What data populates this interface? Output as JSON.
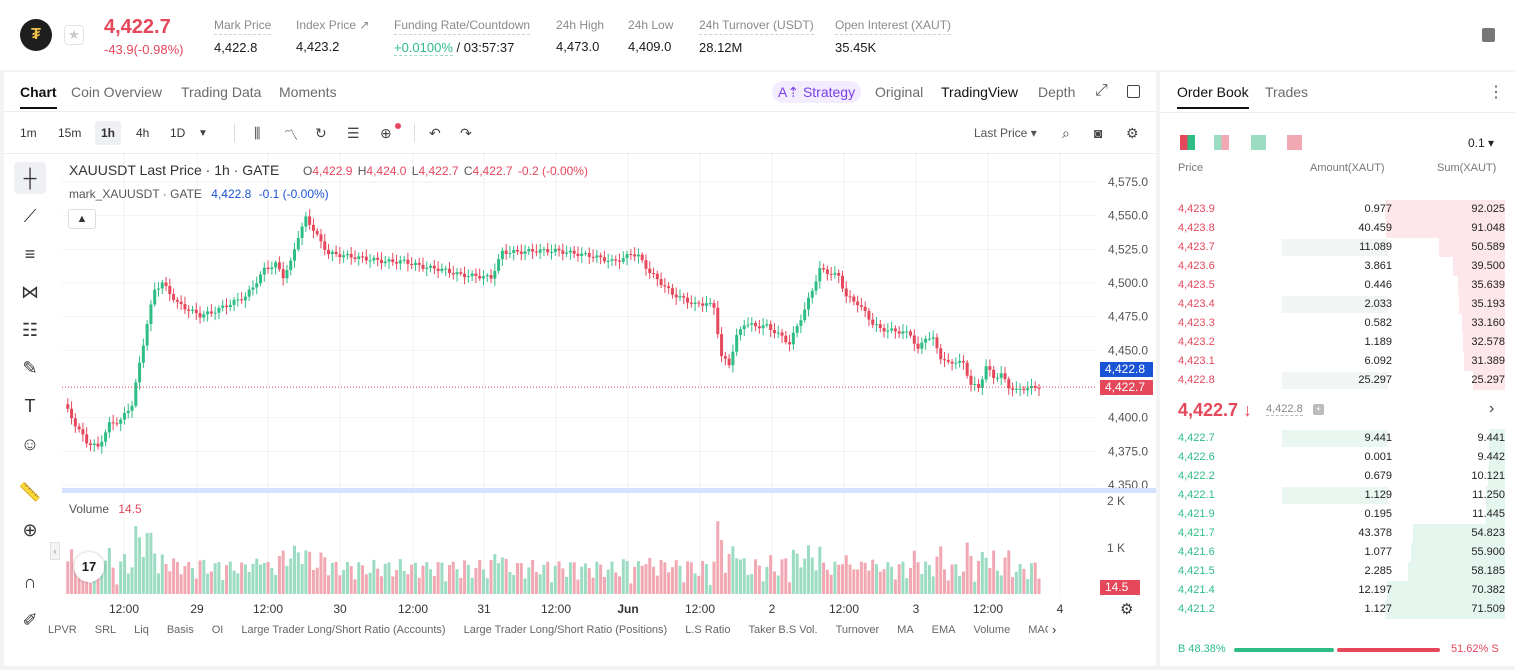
{
  "header": {
    "price": "4,422.7",
    "change": "-43.9(-0.98%)",
    "stats": [
      {
        "label": "Mark Price",
        "value": "4,422.8"
      },
      {
        "label": "Index Price ↗",
        "value": "4,423.2"
      },
      {
        "label": "Funding Rate/Countdown",
        "value_green": "+0.0100%",
        "value": " / 03:57:37"
      },
      {
        "label": "24h High",
        "value": "4,473.0"
      },
      {
        "label": "24h Low",
        "value": "4,409.0"
      },
      {
        "label": "24h Turnover (USDT)",
        "value": "28.12M"
      },
      {
        "label": "Open Interest (XAUT)",
        "value": "35.45K"
      }
    ]
  },
  "chart_panel": {
    "tabs": [
      "Chart",
      "Coin Overview",
      "Trading Data",
      "Moments"
    ],
    "strategy": "A⇡ Strategy",
    "views": [
      "Original",
      "TradingView",
      "Depth"
    ],
    "timeframes": [
      "1m",
      "15m",
      "1h",
      "4h",
      "1D"
    ],
    "last_price_select": "Last Price ▾",
    "legend_title": "XAUUSDT Last Price · 1h · GATE",
    "ohlc": {
      "o_label": "O",
      "o": "4,422.9",
      "h_label": "H",
      "h": "4,424.0",
      "l_label": "L",
      "l": "4,422.7",
      "c_label": "C",
      "c": "4,422.7",
      "chg": "-0.2 (-0.00%)"
    },
    "mark_legend": "mark_XAUUSDT · GATE",
    "mark_value": "4,422.8",
    "mark_chg": "-0.1 (-0.00%)",
    "volume_label": "Volume",
    "volume_value": "14.5",
    "mark_tag": "4,422.8",
    "last_tag": "4,422.7",
    "vol_tag": "14.5",
    "vol_axis": [
      "2 K",
      "1 K"
    ],
    "tv_logo": "17",
    "indicators": [
      "LPVR",
      "SRL",
      "Liq",
      "Basis",
      "OI",
      "Large Trader Long/Short Ratio (Accounts)",
      "Large Trader Long/Short Ratio (Positions)",
      "L.S Ratio",
      "Taker B.S Vol.",
      "Turnover",
      "MA",
      "EMA",
      "Volume",
      "MACD"
    ]
  },
  "chart_data": {
    "type": "candlestick",
    "y_ticks": [
      4575.0,
      4550.0,
      4525.0,
      4500.0,
      4475.0,
      4450.0,
      4400.0,
      4375.0,
      4350.0
    ],
    "y_tick_labels": [
      "4,575.0",
      "4,550.0",
      "4,525.0",
      "4,500.0",
      "4,475.0",
      "4,450.0",
      "4,400.0",
      "4,375.0",
      "4,350.0"
    ],
    "x_tick_labels": [
      "12:00",
      "29",
      "12:00",
      "30",
      "12:00",
      "31",
      "12:00",
      "Jun",
      "12:00",
      "2",
      "12:00",
      "3",
      "12:00",
      "4"
    ],
    "close_path": [
      [
        0,
        4410
      ],
      [
        3,
        4395
      ],
      [
        6,
        4382
      ],
      [
        9,
        4378
      ],
      [
        12,
        4395
      ],
      [
        15,
        4398
      ],
      [
        18,
        4410
      ],
      [
        20,
        4440
      ],
      [
        22,
        4470
      ],
      [
        24,
        4495
      ],
      [
        26,
        4500
      ],
      [
        30,
        4485
      ],
      [
        33,
        4480
      ],
      [
        36,
        4476
      ],
      [
        39,
        4478
      ],
      [
        42,
        4482
      ],
      [
        45,
        4486
      ],
      [
        48,
        4490
      ],
      [
        50,
        4497
      ],
      [
        53,
        4510
      ],
      [
        56,
        4514
      ],
      [
        58,
        4505
      ],
      [
        60,
        4515
      ],
      [
        62,
        4535
      ],
      [
        64,
        4548
      ],
      [
        66,
        4540
      ],
      [
        68,
        4530
      ],
      [
        70,
        4522
      ],
      [
        75,
        4520
      ],
      [
        80,
        4518
      ],
      [
        85,
        4516
      ],
      [
        90,
        4516
      ],
      [
        95,
        4512
      ],
      [
        100,
        4510
      ],
      [
        105,
        4506
      ],
      [
        110,
        4505
      ],
      [
        113,
        4504
      ],
      [
        116,
        4523
      ],
      [
        120,
        4523
      ],
      [
        125,
        4524
      ],
      [
        130,
        4524
      ],
      [
        135,
        4522
      ],
      [
        140,
        4520
      ],
      [
        145,
        4516
      ],
      [
        148,
        4518
      ],
      [
        150,
        4522
      ],
      [
        152,
        4520
      ],
      [
        155,
        4508
      ],
      [
        158,
        4500
      ],
      [
        161,
        4492
      ],
      [
        164,
        4488
      ],
      [
        167,
        4484
      ],
      [
        170,
        4485
      ],
      [
        172,
        4482
      ],
      [
        174,
        4445
      ],
      [
        176,
        4440
      ],
      [
        178,
        4460
      ],
      [
        180,
        4470
      ],
      [
        183,
        4468
      ],
      [
        186,
        4468
      ],
      [
        188,
        4464
      ],
      [
        190,
        4460
      ],
      [
        192,
        4455
      ],
      [
        194,
        4468
      ],
      [
        196,
        4480
      ],
      [
        198,
        4495
      ],
      [
        200,
        4510
      ],
      [
        202,
        4508
      ],
      [
        205,
        4505
      ],
      [
        207,
        4490
      ],
      [
        210,
        4485
      ],
      [
        212,
        4478
      ],
      [
        214,
        4470
      ],
      [
        216,
        4466
      ],
      [
        218,
        4465
      ],
      [
        221,
        4464
      ],
      [
        224,
        4462
      ],
      [
        226,
        4450
      ],
      [
        228,
        4460
      ],
      [
        230,
        4458
      ],
      [
        232,
        4445
      ],
      [
        234,
        4440
      ],
      [
        236,
        4442
      ],
      [
        238,
        4440
      ],
      [
        240,
        4425
      ],
      [
        242,
        4422
      ],
      [
        244,
        4438
      ],
      [
        246,
        4430
      ],
      [
        248,
        4432
      ],
      [
        250,
        4423
      ],
      [
        252,
        4420
      ],
      [
        254,
        4422
      ],
      [
        256,
        4422
      ],
      [
        258,
        4423
      ]
    ],
    "last_price": 4422.7,
    "mark_price": 4422.8,
    "volume_range": [
      0,
      2000
    ],
    "latest_volume": 14.5
  },
  "order_book": {
    "tabs": [
      "Order Book",
      "Trades"
    ],
    "precision": "0.1 ▾",
    "headers": [
      "Price",
      "Amount(XAUT)",
      "Sum(XAUT)"
    ],
    "asks": [
      {
        "price": "4,423.9",
        "amount": "0.977",
        "sum": "92.025",
        "amount_pct": 0.0,
        "sum_pct": 1.0
      },
      {
        "price": "4,423.8",
        "amount": "40.459",
        "sum": "91.048",
        "amount_pct": 0.0,
        "sum_pct": 0.99
      },
      {
        "price": "4,423.7",
        "amount": "11.089",
        "sum": "50.589",
        "amount_pct": 0.95,
        "sum_pct": 0.55
      },
      {
        "price": "4,423.6",
        "amount": "3.861",
        "sum": "39.500",
        "amount_pct": 0.0,
        "sum_pct": 0.43
      },
      {
        "price": "4,423.5",
        "amount": "0.446",
        "sum": "35.639",
        "amount_pct": 0.0,
        "sum_pct": 0.39
      },
      {
        "price": "4,423.4",
        "amount": "2.033",
        "sum": "35.193",
        "amount_pct": 0.95,
        "sum_pct": 0.38
      },
      {
        "price": "4,423.3",
        "amount": "0.582",
        "sum": "33.160",
        "amount_pct": 0.0,
        "sum_pct": 0.36
      },
      {
        "price": "4,423.2",
        "amount": "1.189",
        "sum": "32.578",
        "amount_pct": 0.0,
        "sum_pct": 0.35
      },
      {
        "price": "4,423.1",
        "amount": "6.092",
        "sum": "31.389",
        "amount_pct": 0.0,
        "sum_pct": 0.34
      },
      {
        "price": "4,422.8",
        "amount": "25.297",
        "sum": "25.297",
        "amount_pct": 0.95,
        "sum_pct": 0.27
      }
    ],
    "mid_price": "4,422.7 ↓",
    "mid_mark": "4,422.8",
    "bids": [
      {
        "price": "4,422.7",
        "amount": "9.441",
        "sum": "9.441",
        "amount_pct": 0.95,
        "sum_pct": 0.13
      },
      {
        "price": "4,422.6",
        "amount": "0.001",
        "sum": "9.442",
        "amount_pct": 0.0,
        "sum_pct": 0.13
      },
      {
        "price": "4,422.2",
        "amount": "0.679",
        "sum": "10.121",
        "amount_pct": 0.0,
        "sum_pct": 0.14
      },
      {
        "price": "4,422.1",
        "amount": "1.129",
        "sum": "11.250",
        "amount_pct": 0.95,
        "sum_pct": 0.16
      },
      {
        "price": "4,421.9",
        "amount": "0.195",
        "sum": "11.445",
        "amount_pct": 0.0,
        "sum_pct": 0.16
      },
      {
        "price": "4,421.7",
        "amount": "43.378",
        "sum": "54.823",
        "amount_pct": 0.0,
        "sum_pct": 0.77
      },
      {
        "price": "4,421.6",
        "amount": "1.077",
        "sum": "55.900",
        "amount_pct": 0.0,
        "sum_pct": 0.78
      },
      {
        "price": "4,421.5",
        "amount": "2.285",
        "sum": "58.185",
        "amount_pct": 0.0,
        "sum_pct": 0.81
      },
      {
        "price": "4,421.4",
        "amount": "12.197",
        "sum": "70.382",
        "amount_pct": 0.0,
        "sum_pct": 0.98
      },
      {
        "price": "4,421.2",
        "amount": "1.127",
        "sum": "71.509",
        "amount_pct": 0.0,
        "sum_pct": 1.0
      }
    ],
    "buy_ratio": "B 48.38%",
    "sell_ratio": "51.62% S",
    "buy_pct": 48.38
  },
  "colors": {
    "up": "#2ebd85",
    "down": "#e5475b",
    "accent": "#7b3fe4",
    "mark": "#1a54d6"
  }
}
